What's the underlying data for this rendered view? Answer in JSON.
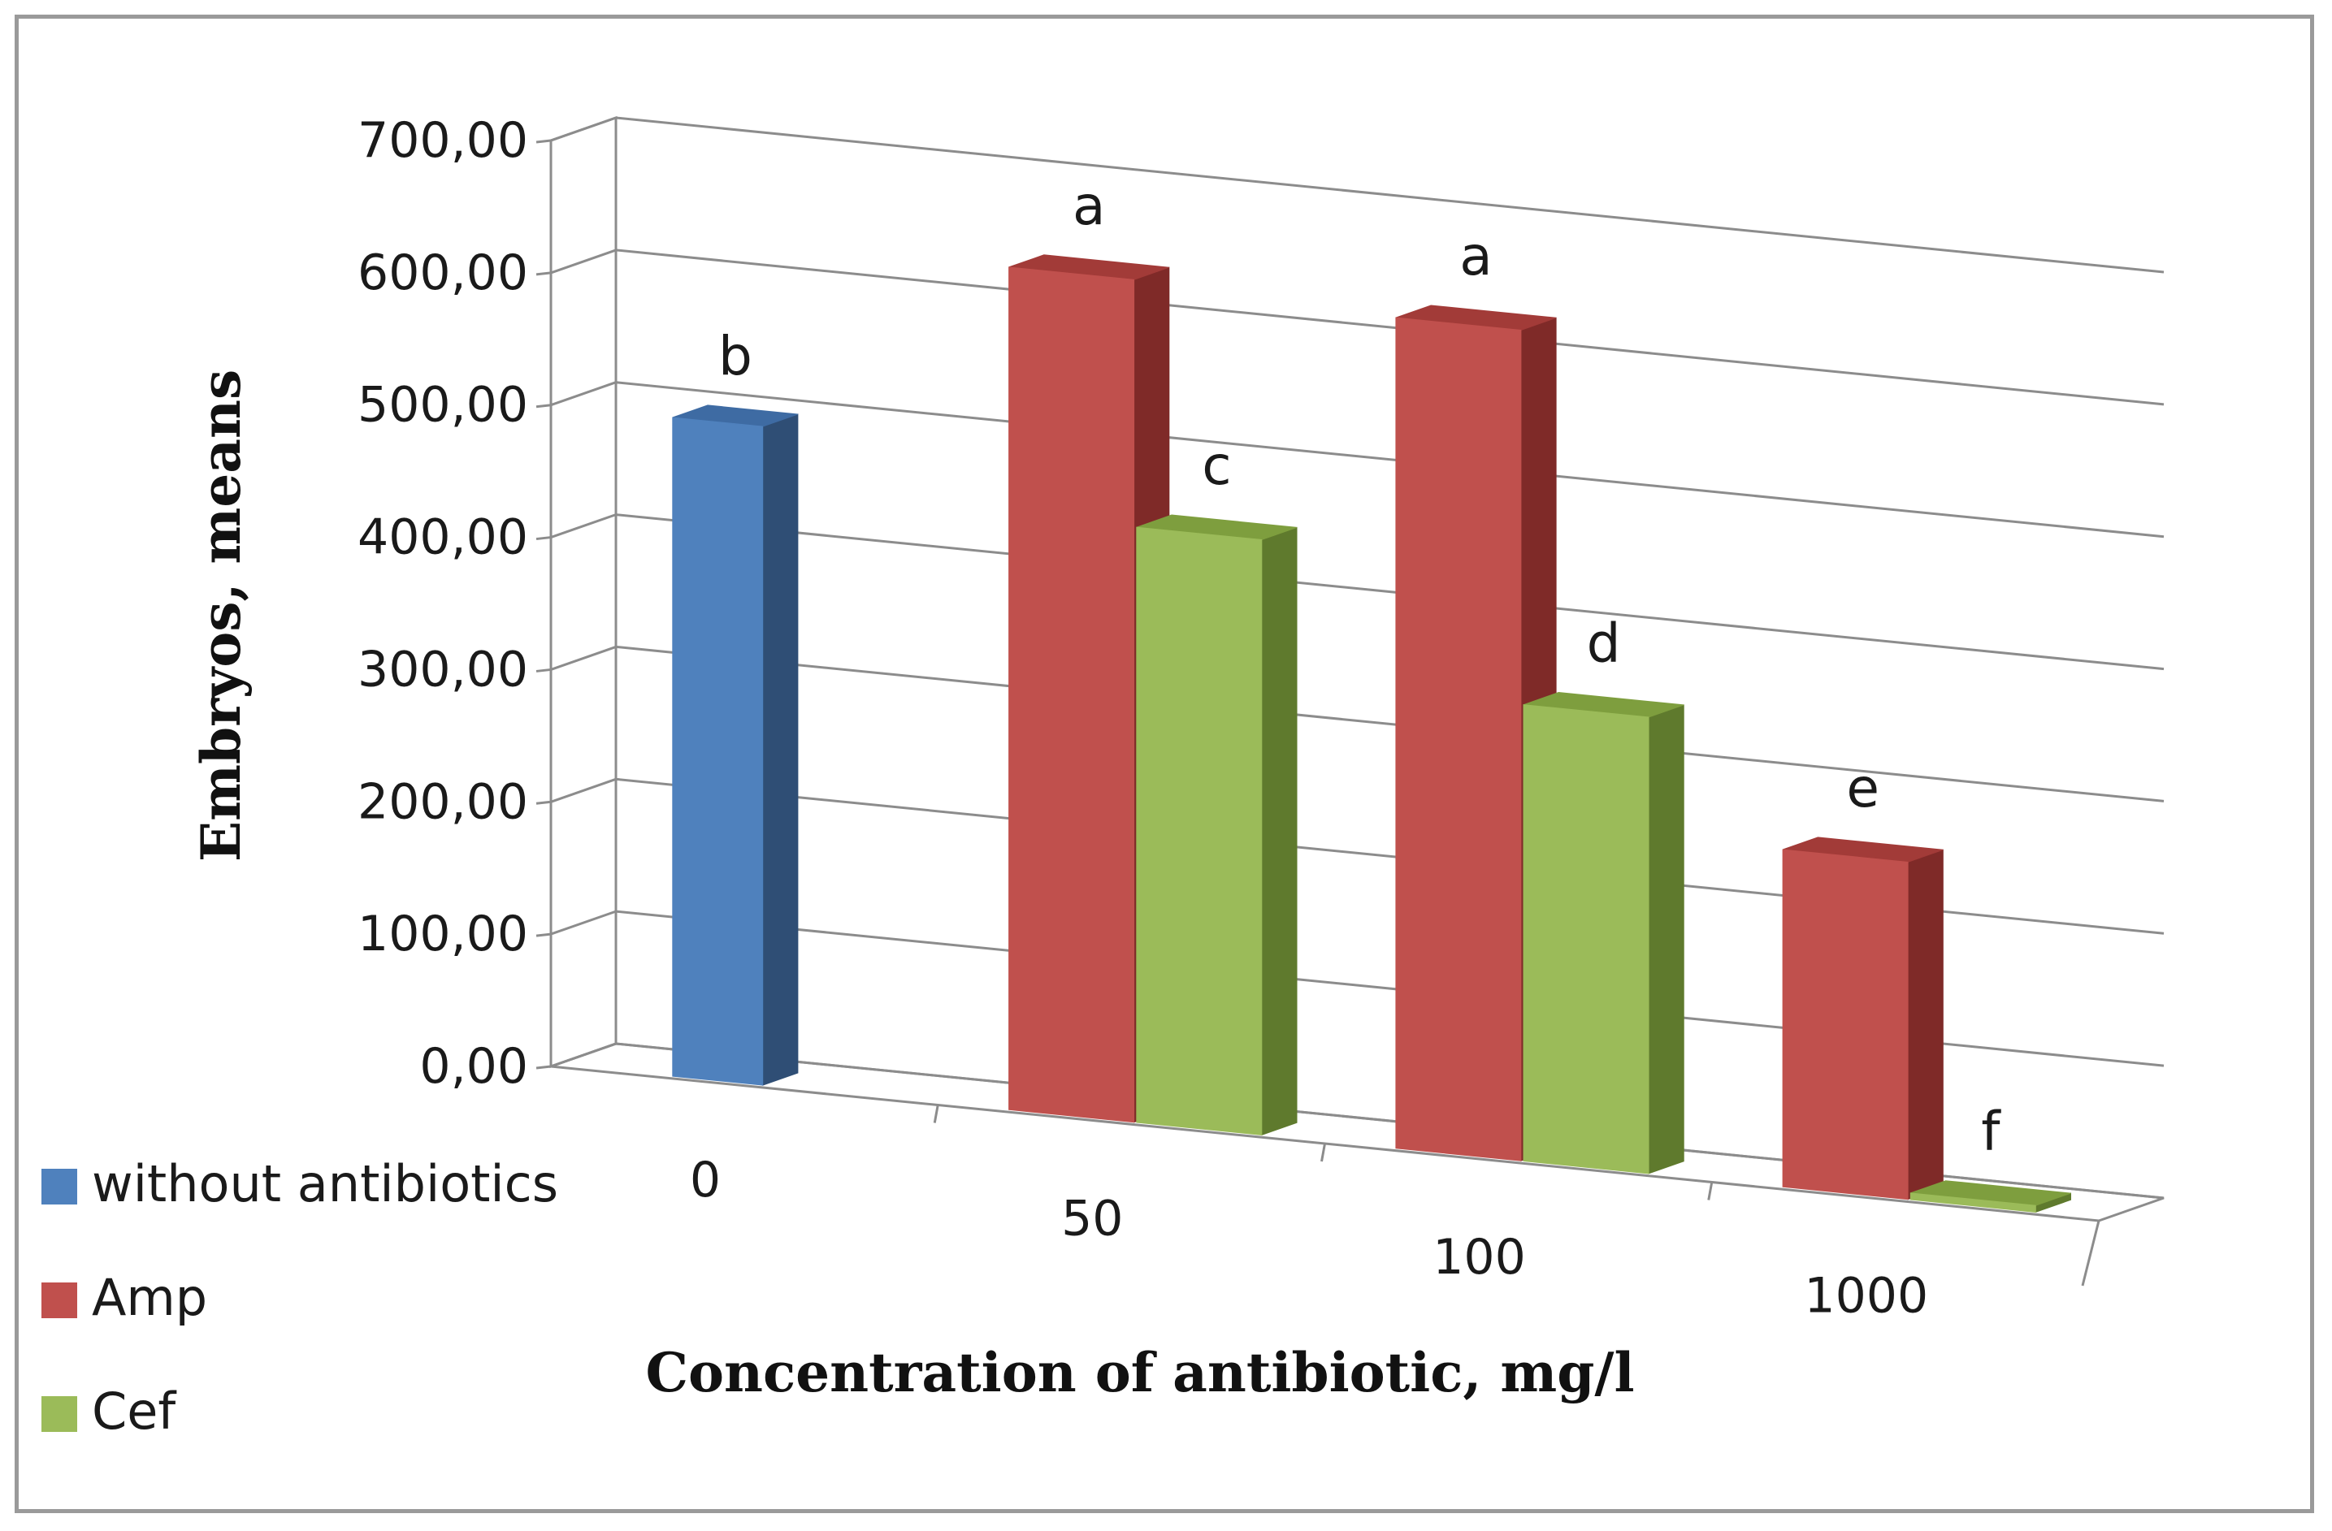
{
  "chart_data": {
    "type": "bar",
    "style": "3d-clustered-column",
    "title": "",
    "xlabel": "Concentration of antibiotic, mg/l",
    "ylabel": "Embryos, means",
    "ylim": [
      0,
      700
    ],
    "ytick_step": 100,
    "ytick_labels": [
      "0,00",
      "100,00",
      "200,00",
      "300,00",
      "400,00",
      "500,00",
      "600,00",
      "700,00"
    ],
    "grid": true,
    "legend_position": "bottom-left",
    "categories": [
      "0",
      "50",
      "100",
      "1000"
    ],
    "series": [
      {
        "name": "without antibiotics",
        "color": "#4F81BD",
        "side_color": "#2F4E75",
        "top_color": "#3E6BA3",
        "values": [
          498,
          null,
          null,
          null
        ],
        "labels": [
          "b",
          null,
          null,
          null
        ]
      },
      {
        "name": "Amp",
        "color": "#C0504D",
        "side_color": "#7F2A28",
        "top_color": "#A23B38",
        "values": [
          null,
          637,
          628,
          255
        ],
        "labels": [
          null,
          "a",
          "a",
          "e"
        ]
      },
      {
        "name": "Cef",
        "color": "#9BBB59",
        "side_color": "#5F7A2D",
        "top_color": "#7E9E3E",
        "values": [
          null,
          450,
          345,
          5
        ],
        "labels": [
          null,
          "c",
          "d",
          "f"
        ]
      }
    ]
  }
}
